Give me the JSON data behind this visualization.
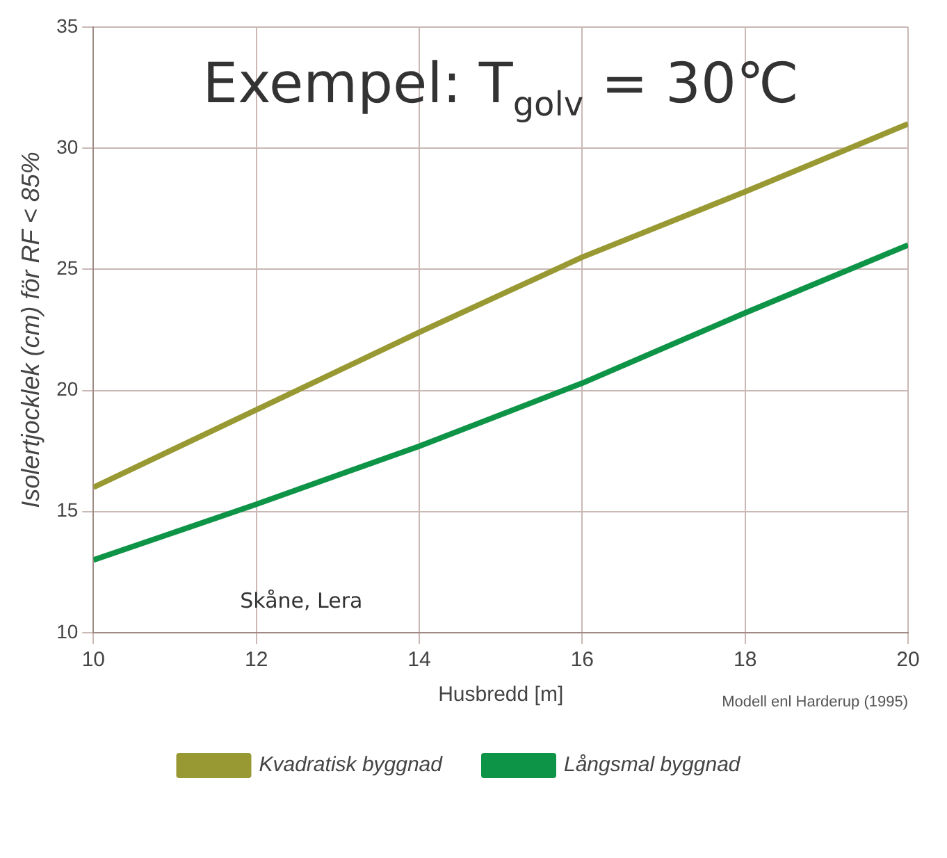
{
  "chart_data": {
    "type": "line",
    "xlabel": "Husbredd [m]",
    "ylabel": "Isolertjocklek (cm) för RF < 85%",
    "x": [
      10,
      12,
      14,
      16,
      18,
      20
    ],
    "series": [
      {
        "name": "Kvadratisk byggnad",
        "color": "#999933",
        "values": [
          16,
          19.2,
          22.4,
          25.5,
          28.2,
          31
        ]
      },
      {
        "name": "Långsmal byggnad",
        "color": "#0e9447",
        "values": [
          13,
          15.3,
          17.7,
          20.3,
          23.2,
          26
        ]
      }
    ],
    "xlim": [
      10,
      20
    ],
    "xticks": [
      10,
      12,
      14,
      16,
      18,
      20
    ],
    "ylim": [
      10,
      35
    ],
    "yticks": [
      10,
      15,
      20,
      25,
      30,
      35
    ],
    "grid": true,
    "legend": "bottom",
    "marker": "none",
    "line_style": "solid",
    "annotations": [
      "Exempel: T$_{golv}$ = 30℃",
      "Skåne, Lera",
      "Modell enl Harderup (1995)"
    ]
  }
}
